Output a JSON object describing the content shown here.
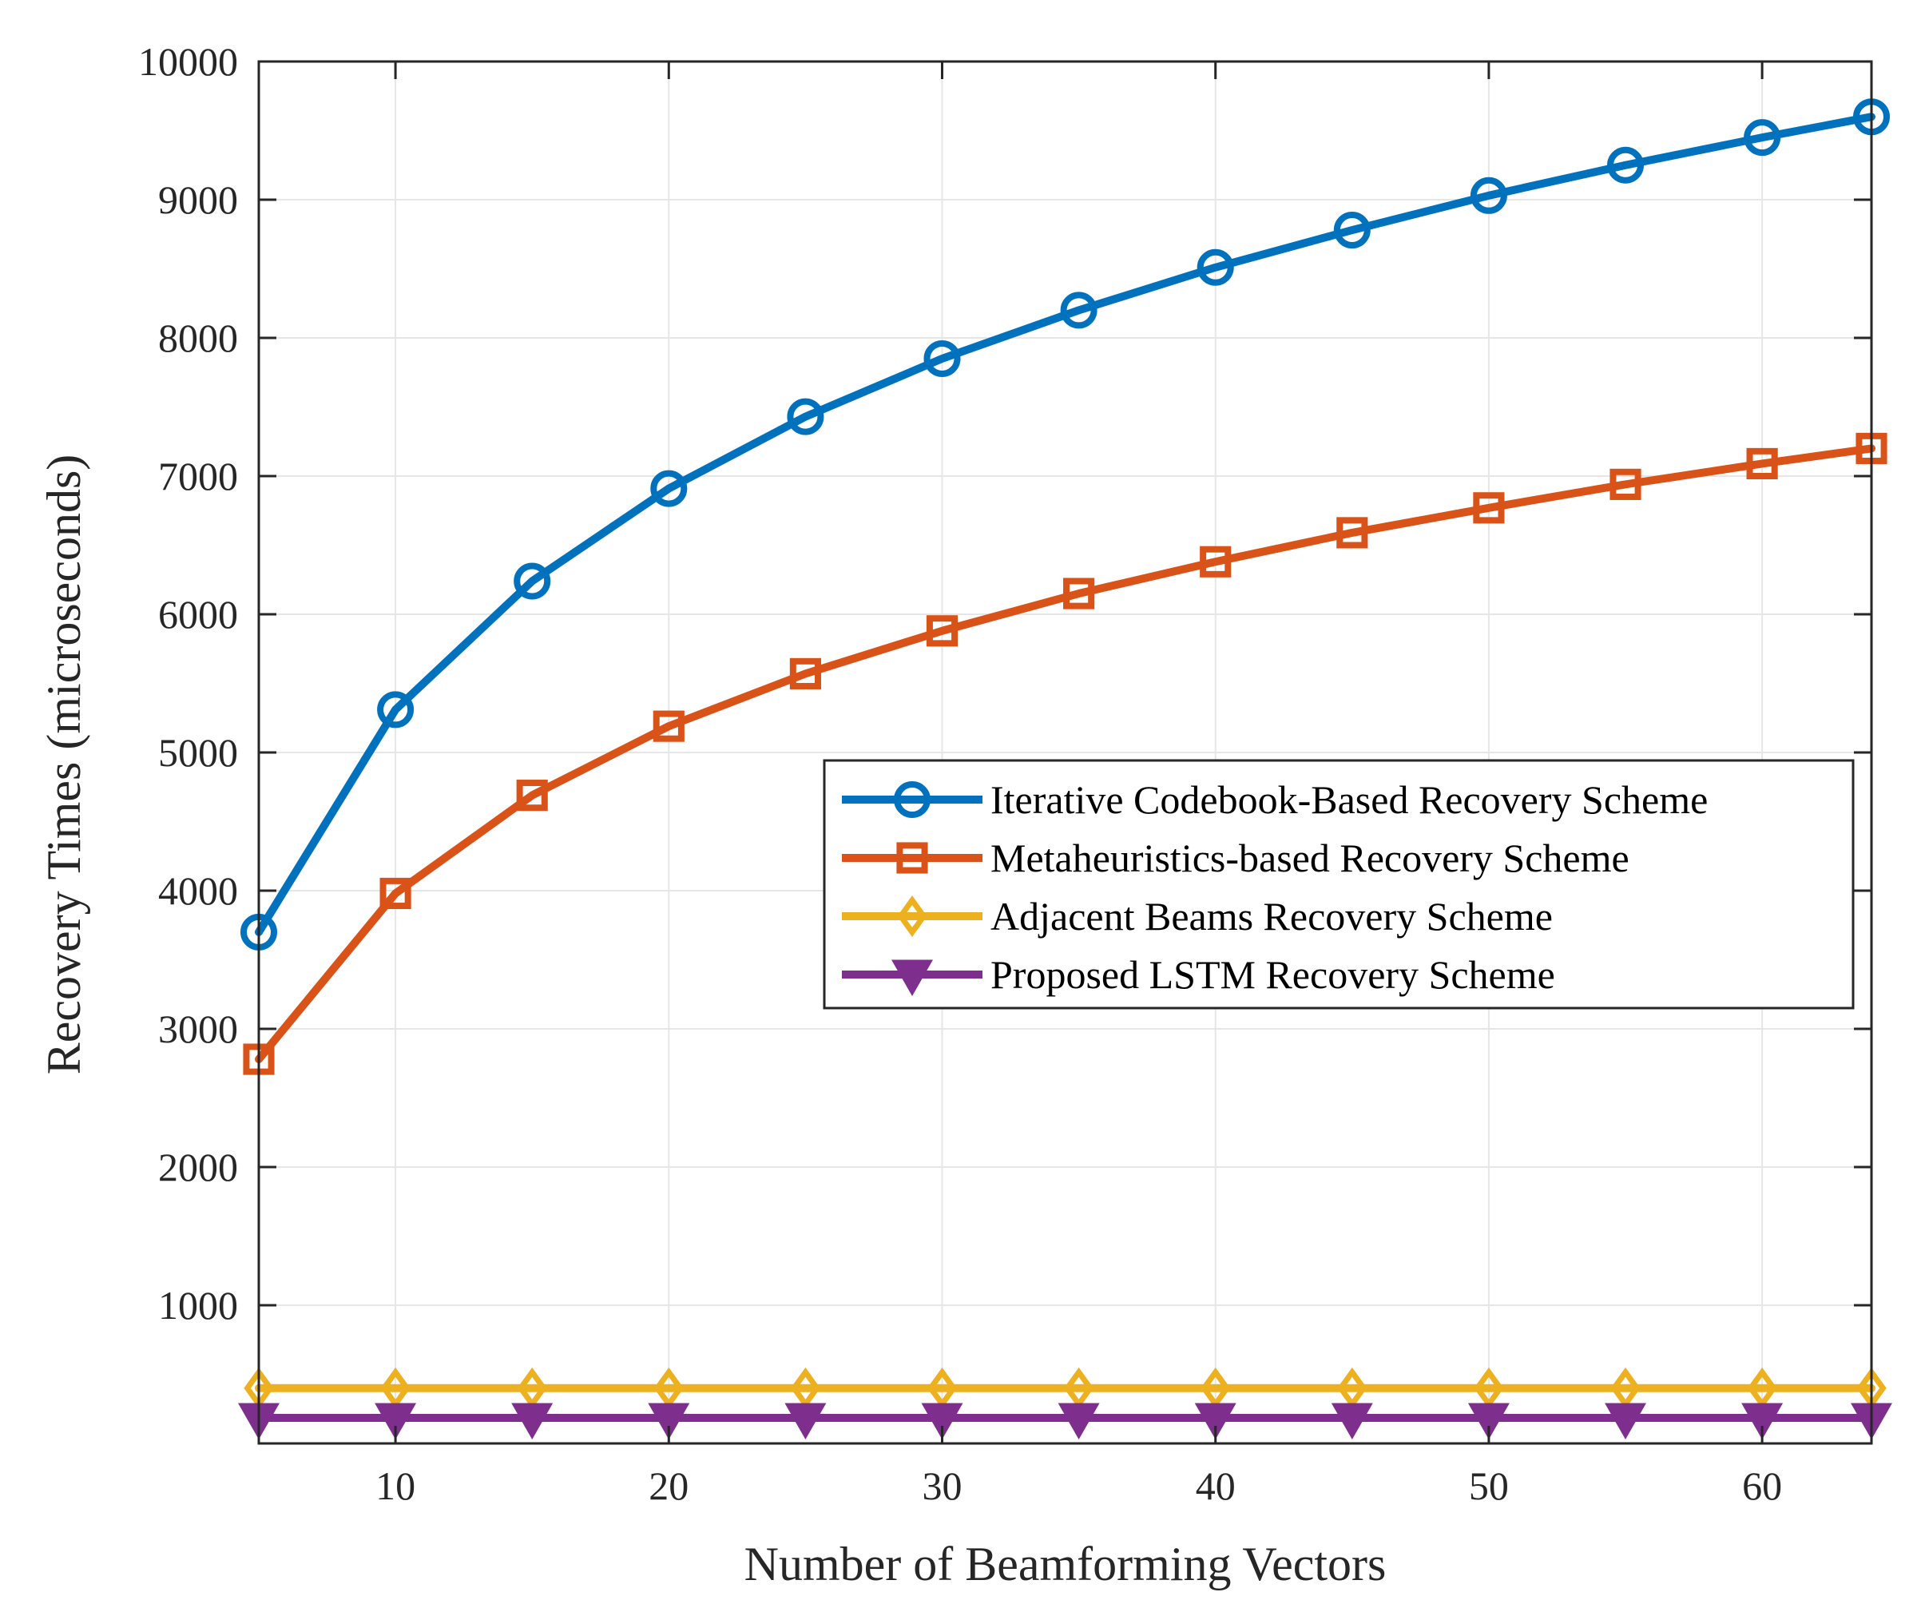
{
  "chart_data": {
    "type": "line",
    "title": "",
    "xlabel": "Number of Beamforming Vectors",
    "ylabel": "Recovery Times (microseconds)",
    "xlim": [
      5,
      64
    ],
    "ylim": [
      0,
      10000
    ],
    "xticks": [
      10,
      20,
      30,
      40,
      50,
      60
    ],
    "yticks": [
      1000,
      2000,
      3000,
      4000,
      5000,
      6000,
      7000,
      8000,
      9000,
      10000
    ],
    "grid": true,
    "legend_position": "center-right",
    "x": [
      5,
      10,
      15,
      20,
      25,
      30,
      35,
      40,
      45,
      50,
      55,
      60,
      64
    ],
    "series": [
      {
        "name": "Iterative Codebook-Based Recovery Scheme",
        "color": "#0072BD",
        "marker": "circle",
        "values": [
          3700,
          5310,
          6240,
          6910,
          7430,
          7850,
          8200,
          8510,
          8780,
          9030,
          9250,
          9450,
          9600
        ]
      },
      {
        "name": "Metaheuristics-based Recovery Scheme",
        "color": "#D95319",
        "marker": "square",
        "values": [
          2780,
          3980,
          4690,
          5190,
          5570,
          5880,
          6150,
          6380,
          6590,
          6770,
          6940,
          7090,
          7200
        ]
      },
      {
        "name": "Adjacent Beams Recovery Scheme",
        "color": "#EDB120",
        "marker": "diamond",
        "values": [
          400,
          400,
          400,
          400,
          400,
          400,
          400,
          400,
          400,
          400,
          400,
          400,
          400
        ]
      },
      {
        "name": "Proposed LSTM Recovery Scheme",
        "color": "#7E2F8E",
        "marker": "triangle-down",
        "values": [
          185,
          185,
          185,
          185,
          185,
          185,
          185,
          185,
          185,
          185,
          185,
          185,
          185
        ]
      }
    ]
  }
}
